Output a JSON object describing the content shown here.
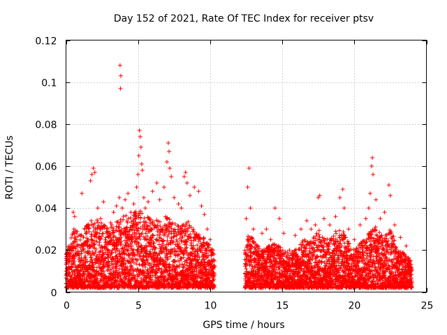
{
  "chart_data": {
    "type": "scatter",
    "title": "Day 152 of 2021, Rate Of TEC Index for receiver ptsv",
    "xlabel": "GPS time / hours",
    "ylabel": "ROTI / TECUs",
    "xlim": [
      0,
      25
    ],
    "ylim": [
      0,
      0.12
    ],
    "x_ticks": [
      0,
      5,
      10,
      15,
      20,
      25
    ],
    "y_ticks": [
      0,
      0.02,
      0.04,
      0.06,
      0.08,
      0.1,
      0.12
    ],
    "x_tick_labels": [
      "0",
      "5",
      "10",
      "15",
      "20",
      "25"
    ],
    "y_tick_labels": [
      "0",
      "0.02",
      "0.04",
      "0.06",
      "0.08",
      "0.1",
      "0.12"
    ],
    "grid": true,
    "marker": "+",
    "data_gap_hours": [
      10.3,
      12.4
    ],
    "series": [
      {
        "name": "ROTI",
        "color": "#ff0000",
        "points": [
          [
            0.0,
            0.008
          ],
          [
            0.1,
            0.02
          ],
          [
            0.2,
            0.012
          ],
          [
            0.4,
            0.015
          ],
          [
            0.5,
            0.038
          ],
          [
            0.55,
            0.03
          ],
          [
            0.6,
            0.036
          ],
          [
            0.7,
            0.025
          ],
          [
            0.9,
            0.018
          ],
          [
            1.1,
            0.047
          ],
          [
            1.3,
            0.03
          ],
          [
            1.5,
            0.022
          ],
          [
            1.7,
            0.053
          ],
          [
            1.8,
            0.056
          ],
          [
            1.9,
            0.059
          ],
          [
            2.0,
            0.057
          ],
          [
            2.2,
            0.04
          ],
          [
            2.4,
            0.035
          ],
          [
            2.6,
            0.043
          ],
          [
            2.9,
            0.028
          ],
          [
            3.1,
            0.033
          ],
          [
            3.3,
            0.038
          ],
          [
            3.5,
            0.041
          ],
          [
            3.7,
            0.045
          ],
          [
            3.75,
            0.108
          ],
          [
            3.8,
            0.103
          ],
          [
            3.78,
            0.097
          ],
          [
            3.9,
            0.04
          ],
          [
            4.1,
            0.044
          ],
          [
            4.3,
            0.047
          ],
          [
            4.5,
            0.038
          ],
          [
            4.7,
            0.042
          ],
          [
            4.9,
            0.05
          ],
          [
            5.0,
            0.056
          ],
          [
            5.05,
            0.065
          ],
          [
            5.1,
            0.077
          ],
          [
            5.15,
            0.074
          ],
          [
            5.2,
            0.069
          ],
          [
            5.25,
            0.061
          ],
          [
            5.3,
            0.058
          ],
          [
            5.4,
            0.045
          ],
          [
            5.5,
            0.04
          ],
          [
            5.7,
            0.043
          ],
          [
            6.0,
            0.048
          ],
          [
            6.3,
            0.052
          ],
          [
            6.5,
            0.044
          ],
          [
            6.8,
            0.05
          ],
          [
            7.0,
            0.062
          ],
          [
            7.1,
            0.071
          ],
          [
            7.15,
            0.067
          ],
          [
            7.2,
            0.059
          ],
          [
            7.3,
            0.055
          ],
          [
            7.5,
            0.045
          ],
          [
            7.8,
            0.042
          ],
          [
            8.0,
            0.04
          ],
          [
            8.2,
            0.055
          ],
          [
            8.3,
            0.057
          ],
          [
            8.4,
            0.052
          ],
          [
            8.6,
            0.046
          ],
          [
            8.9,
            0.05
          ],
          [
            9.2,
            0.048
          ],
          [
            9.4,
            0.041
          ],
          [
            9.6,
            0.037
          ],
          [
            9.8,
            0.03
          ],
          [
            10.0,
            0.025
          ],
          [
            10.2,
            0.02
          ],
          [
            12.5,
            0.035
          ],
          [
            12.6,
            0.05
          ],
          [
            12.7,
            0.059
          ],
          [
            12.8,
            0.04
          ],
          [
            13.0,
            0.03
          ],
          [
            13.3,
            0.022
          ],
          [
            13.6,
            0.028
          ],
          [
            13.9,
            0.03
          ],
          [
            14.2,
            0.025
          ],
          [
            14.5,
            0.04
          ],
          [
            14.8,
            0.035
          ],
          [
            15.1,
            0.028
          ],
          [
            15.5,
            0.02
          ],
          [
            15.9,
            0.027
          ],
          [
            16.3,
            0.03
          ],
          [
            16.7,
            0.034
          ],
          [
            17.0,
            0.03
          ],
          [
            17.3,
            0.032
          ],
          [
            17.5,
            0.045
          ],
          [
            17.6,
            0.046
          ],
          [
            17.9,
            0.035
          ],
          [
            18.3,
            0.032
          ],
          [
            18.7,
            0.036
          ],
          [
            19.0,
            0.045
          ],
          [
            19.2,
            0.049
          ],
          [
            19.3,
            0.04
          ],
          [
            19.6,
            0.03
          ],
          [
            20.0,
            0.025
          ],
          [
            20.4,
            0.032
          ],
          [
            20.8,
            0.035
          ],
          [
            21.0,
            0.04
          ],
          [
            21.1,
            0.047
          ],
          [
            21.2,
            0.06
          ],
          [
            21.25,
            0.064
          ],
          [
            21.3,
            0.056
          ],
          [
            21.5,
            0.044
          ],
          [
            21.8,
            0.035
          ],
          [
            22.1,
            0.038
          ],
          [
            22.4,
            0.051
          ],
          [
            22.5,
            0.046
          ],
          [
            22.8,
            0.032
          ],
          [
            23.2,
            0.026
          ],
          [
            23.6,
            0.022
          ],
          [
            23.9,
            0.015
          ]
        ],
        "envelope": [
          [
            0.0,
            0.018
          ],
          [
            0.5,
            0.03
          ],
          [
            1.0,
            0.028
          ],
          [
            1.5,
            0.033
          ],
          [
            2.0,
            0.035
          ],
          [
            2.5,
            0.033
          ],
          [
            3.0,
            0.03
          ],
          [
            3.5,
            0.036
          ],
          [
            4.0,
            0.038
          ],
          [
            4.5,
            0.036
          ],
          [
            5.0,
            0.04
          ],
          [
            5.5,
            0.036
          ],
          [
            6.0,
            0.035
          ],
          [
            6.5,
            0.034
          ],
          [
            7.0,
            0.038
          ],
          [
            7.5,
            0.033
          ],
          [
            8.0,
            0.032
          ],
          [
            8.5,
            0.034
          ],
          [
            9.0,
            0.03
          ],
          [
            9.5,
            0.027
          ],
          [
            10.0,
            0.022
          ],
          [
            10.3,
            0.018
          ],
          [
            12.4,
            0.025
          ],
          [
            12.8,
            0.028
          ],
          [
            13.5,
            0.02
          ],
          [
            14.0,
            0.022
          ],
          [
            14.5,
            0.023
          ],
          [
            15.0,
            0.021
          ],
          [
            15.5,
            0.018
          ],
          [
            16.0,
            0.022
          ],
          [
            16.5,
            0.025
          ],
          [
            17.0,
            0.024
          ],
          [
            17.5,
            0.03
          ],
          [
            18.0,
            0.025
          ],
          [
            18.5,
            0.027
          ],
          [
            19.0,
            0.032
          ],
          [
            19.5,
            0.025
          ],
          [
            20.0,
            0.02
          ],
          [
            20.5,
            0.024
          ],
          [
            21.0,
            0.028
          ],
          [
            21.5,
            0.032
          ],
          [
            22.0,
            0.026
          ],
          [
            22.5,
            0.03
          ],
          [
            23.0,
            0.022
          ],
          [
            23.5,
            0.018
          ],
          [
            24.0,
            0.015
          ]
        ]
      }
    ]
  }
}
